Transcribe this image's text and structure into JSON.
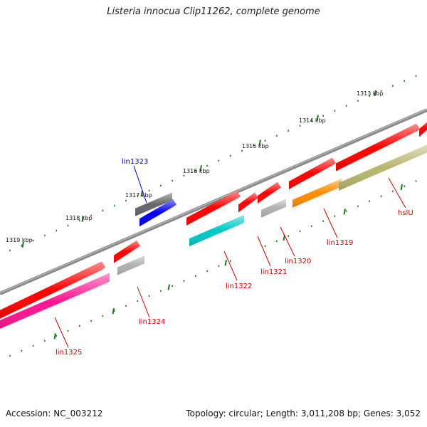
{
  "title": "Listeria innocua Clip11262, complete genome",
  "footer": {
    "accession": "Accession: NC_003212",
    "summary": "Topology: circular; Length: 3,011,208 bp; Genes: 3,052"
  },
  "ruler": {
    "ticks": [
      "1313 kbp",
      "1314 kbp",
      "1315 kbp",
      "1316 kbp",
      "1317 kbp",
      "1318 kbp",
      "1319 kbp"
    ],
    "tick_color": "#1a7a1a",
    "backbone_color": "#8a8a8a"
  },
  "genes": [
    {
      "label": "hslU",
      "color": "#b8b56e",
      "label_color": "#cc0000"
    },
    {
      "label": "lin1319",
      "color": "#ff8c00",
      "label_color": "#cc0000"
    },
    {
      "label": "lin1320",
      "color": "#b0b0b0",
      "label_color": "#cc0000"
    },
    {
      "label": "lin1321",
      "color": "#ff0000",
      "label_color": "#cc0000"
    },
    {
      "label": "lin1322",
      "color": "#00c8c8",
      "label_color": "#cc0000"
    },
    {
      "label": "lin1323",
      "color": "#0000ee",
      "label_color": "#0000cc"
    },
    {
      "label": "lin1324",
      "color": "#b0b0b0",
      "label_color": "#cc0000"
    },
    {
      "label": "lin1325",
      "color": "#ff1493",
      "label_color": "#cc0000"
    }
  ]
}
